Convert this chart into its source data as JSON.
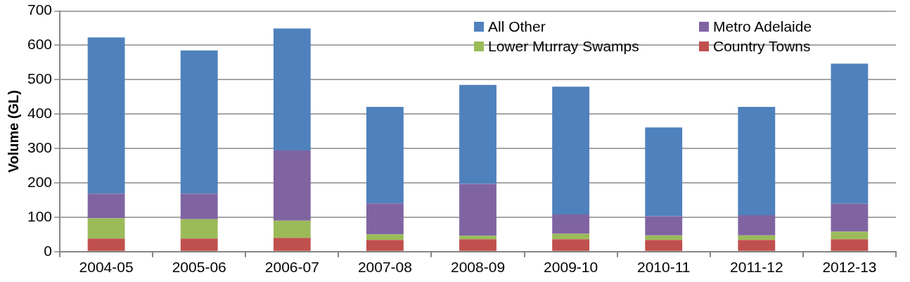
{
  "chart_data": {
    "type": "bar",
    "stacked": true,
    "ylabel": "Volume (GL)",
    "categories": [
      "2004-05",
      "2005-06",
      "2006-07",
      "2007-08",
      "2008-09",
      "2009-10",
      "2010-11",
      "2011-12",
      "2012-13"
    ],
    "series": [
      {
        "name": "Country Towns",
        "color": "#c0504d",
        "values": [
          38,
          38,
          40,
          34,
          36,
          36,
          34,
          34,
          36
        ]
      },
      {
        "name": "Lower Murray Swamps",
        "color": "#9bbb59",
        "values": [
          59,
          56,
          50,
          16,
          10,
          16,
          13,
          13,
          22
        ]
      },
      {
        "name": "Metro Adelaide",
        "color": "#8064a2",
        "values": [
          72,
          75,
          204,
          90,
          151,
          56,
          56,
          59,
          81
        ]
      },
      {
        "name": "All Other",
        "color": "#4f81bd",
        "values": [
          454,
          416,
          355,
          281,
          288,
          372,
          258,
          315,
          408
        ]
      }
    ],
    "ylim": [
      0,
      700
    ],
    "yticks": [
      0,
      100,
      200,
      300,
      400,
      500,
      600,
      700
    ],
    "grid": "y",
    "legend": "top right"
  }
}
